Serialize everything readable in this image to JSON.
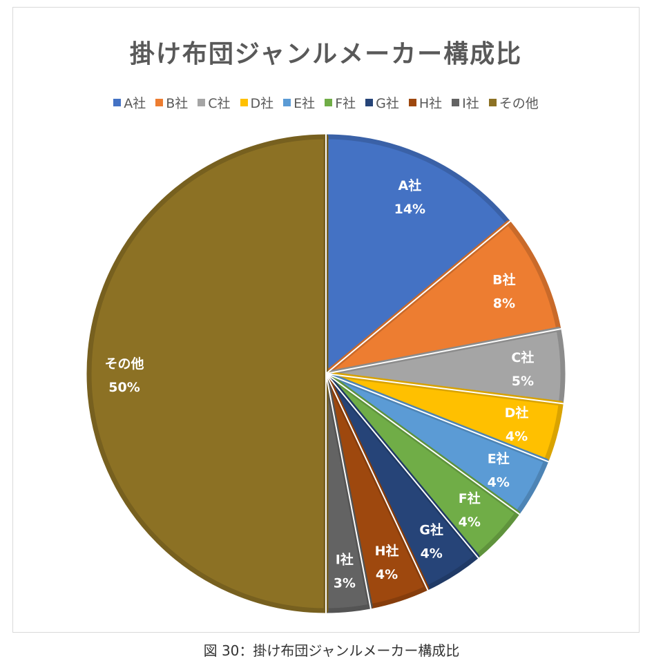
{
  "caption": "図 30：掛け布団ジャンルメーカー構成比",
  "chart_data": {
    "type": "pie",
    "title": "掛け布団ジャンルメーカー構成比",
    "legend_position": "top",
    "start_angle": "12 o'clock, clockwise",
    "categories": [
      "A社",
      "B社",
      "C社",
      "D社",
      "E社",
      "F社",
      "G社",
      "H社",
      "I社",
      "その他"
    ],
    "values": [
      14,
      8,
      5,
      4,
      4,
      4,
      4,
      4,
      3,
      50
    ],
    "data_labels": [
      "14%",
      "8%",
      "5%",
      "4%",
      "4%",
      "4%",
      "4%",
      "4%",
      "3%",
      "50%"
    ],
    "colors": [
      "#4472C4",
      "#ED7D31",
      "#A5A5A5",
      "#FFC000",
      "#5B9BD5",
      "#70AD47",
      "#264478",
      "#9E480E",
      "#636363",
      "#8C7124"
    ]
  }
}
